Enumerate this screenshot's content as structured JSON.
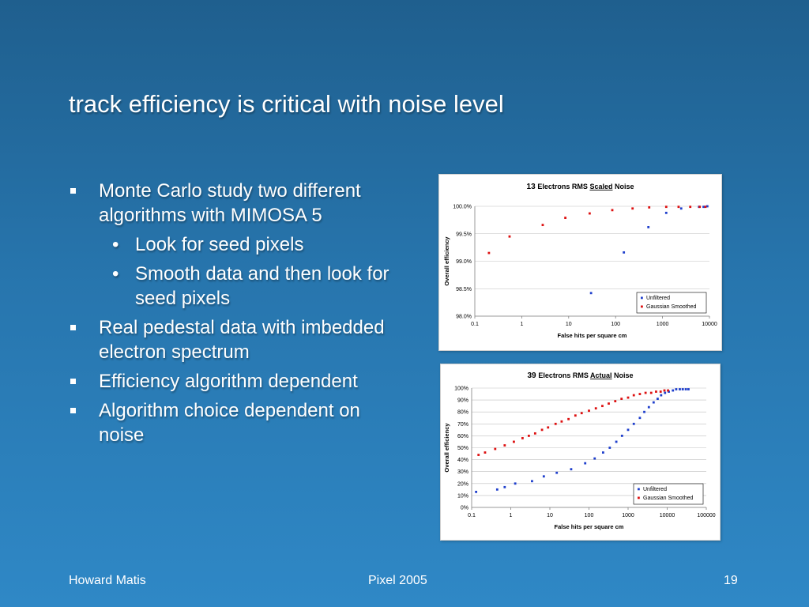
{
  "slide": {
    "title": "track efficiency is critical with noise level",
    "bullets": [
      {
        "text": "Monte Carlo study two different algorithms with MIMOSA 5",
        "sub": [
          "Look for seed pixels",
          "Smooth data and then look for seed pixels"
        ]
      },
      {
        "text": "Real pedestal data with imbedded electron spectrum",
        "sub": []
      },
      {
        "text": "Efficiency algorithm dependent",
        "sub": []
      },
      {
        "text": "Algorithm choice dependent on noise",
        "sub": []
      }
    ],
    "sub_marker": "•"
  },
  "footer": {
    "left": "Howard Matis",
    "center": "Pixel 2005",
    "right": "19"
  },
  "colors": {
    "unfiltered": "#1f3fcc",
    "gaussian": "#dd1111",
    "bullet": "#ffffff"
  },
  "chart_data": [
    {
      "type": "scatter",
      "title_number": "13",
      "title_pre": "Electrons RMS",
      "title_em": "Scaled",
      "title_post": "Noise",
      "xlabel": "False hits per square cm",
      "ylabel": "Overall efficiency",
      "xscale": "log",
      "xlim": [
        0.1,
        10000
      ],
      "ylim": [
        98.0,
        100.0
      ],
      "xticks": [
        "0.1",
        "1",
        "10",
        "100",
        "1000",
        "10000"
      ],
      "yticks": [
        "98.0%",
        "98.5%",
        "99.0%",
        "99.5%",
        "100.0%"
      ],
      "ytick_values": [
        98.0,
        98.5,
        99.0,
        99.5,
        100.0
      ],
      "grid": "horizontal",
      "legend_position": "bottom-right",
      "series": [
        {
          "name": "Unfiltered",
          "color": "unfiltered",
          "x": [
            30,
            150,
            500,
            1200,
            2500,
            6000,
            7500,
            9000
          ],
          "y": [
            98.42,
            99.16,
            99.62,
            99.88,
            99.96,
            99.99,
            99.99,
            100.0
          ]
        },
        {
          "name": "Gaussian Smoothed",
          "color": "gaussian",
          "x": [
            0.2,
            0.55,
            2.8,
            8.5,
            28,
            85,
            230,
            520,
            1200,
            2200,
            3900,
            6200,
            8200
          ],
          "y": [
            99.15,
            99.45,
            99.66,
            99.79,
            99.87,
            99.93,
            99.96,
            99.98,
            99.99,
            99.99,
            99.99,
            99.99,
            99.99
          ]
        }
      ]
    },
    {
      "type": "scatter",
      "title_number": "39",
      "title_pre": "Electrons RMS",
      "title_em": "Actual",
      "title_post": "Noise",
      "xlabel": "False hits per square cm",
      "ylabel": "Overall efficiency",
      "xscale": "log",
      "xlim": [
        0.1,
        100000
      ],
      "ylim": [
        0,
        100
      ],
      "xticks": [
        "0.1",
        "1",
        "10",
        "100",
        "1000",
        "10000",
        "100000"
      ],
      "yticks": [
        "0%",
        "10%",
        "20%",
        "30%",
        "40%",
        "50%",
        "60%",
        "70%",
        "80%",
        "90%",
        "100%"
      ],
      "ytick_values": [
        0,
        10,
        20,
        30,
        40,
        50,
        60,
        70,
        80,
        90,
        100
      ],
      "grid": "horizontal",
      "legend_position": "bottom-right",
      "series": [
        {
          "name": "Unfiltered",
          "color": "unfiltered",
          "x": [
            0.13,
            0.45,
            0.7,
            1.3,
            3.5,
            7,
            15,
            35,
            80,
            140,
            230,
            340,
            500,
            700,
            1000,
            1400,
            2000,
            2600,
            3400,
            4500,
            5700,
            7000,
            8800,
            11000,
            14000,
            17000,
            21000,
            25000,
            30000,
            35000
          ],
          "y": [
            13,
            15,
            17,
            20,
            22,
            26,
            29,
            32,
            37,
            41,
            46,
            50,
            55,
            60,
            65,
            70,
            75,
            80,
            84,
            88,
            91,
            94,
            96,
            97,
            98,
            99,
            99,
            99,
            99,
            99
          ]
        },
        {
          "name": "Gaussian Smoothed",
          "color": "gaussian",
          "x": [
            0.15,
            0.22,
            0.4,
            0.7,
            1.2,
            2,
            2.9,
            4.2,
            6.3,
            9,
            14,
            20,
            30,
            45,
            65,
            100,
            150,
            220,
            320,
            470,
            680,
            1000,
            1400,
            2000,
            2800,
            3900,
            5200,
            6800,
            8500,
            10500
          ],
          "y": [
            44,
            46,
            49,
            52,
            55,
            58,
            60,
            62,
            65,
            67,
            70,
            72,
            74,
            77,
            79,
            81,
            83,
            85,
            87,
            89,
            91,
            92,
            94,
            95,
            96,
            96,
            97,
            97,
            98,
            98
          ]
        }
      ]
    }
  ]
}
